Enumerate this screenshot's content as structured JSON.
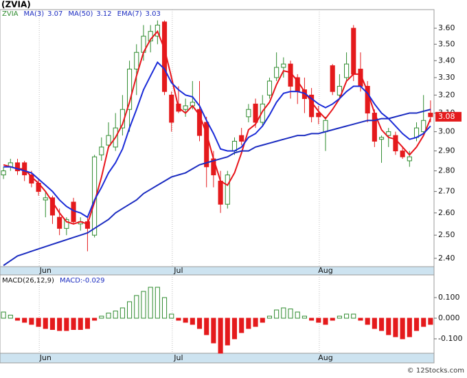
{
  "footer": "© 12Stocks.com",
  "chart_data": [
    {
      "type": "candlestick",
      "title": "(ZVIA)",
      "symbol": "ZVIA",
      "log_scale": true,
      "grid": true,
      "up_color": "#2e8b2e",
      "down_color": "#e41a1c",
      "categories": [
        null,
        null,
        null,
        null,
        null,
        null,
        "Jun",
        null,
        null,
        null,
        null,
        null,
        null,
        null,
        null,
        null,
        null,
        null,
        null,
        null,
        null,
        null,
        null,
        null,
        null,
        "Jul",
        null,
        null,
        null,
        null,
        null,
        null,
        null,
        null,
        null,
        null,
        null,
        null,
        null,
        null,
        null,
        null,
        null,
        null,
        null,
        null,
        "Aug",
        null,
        null,
        null,
        null,
        null,
        null,
        null,
        null,
        null,
        null,
        null,
        null,
        null,
        null,
        null
      ],
      "open": [
        2.78,
        2.82,
        2.84,
        2.84,
        2.78,
        2.74,
        2.66,
        2.67,
        2.58,
        2.53,
        2.65,
        2.55,
        2.56,
        2.5,
        2.88,
        2.93,
        2.92,
        3.02,
        3.12,
        3.35,
        3.45,
        3.52,
        3.55,
        3.64,
        3.2,
        3.15,
        3.12,
        3.14,
        3.12,
        3.05,
        2.86,
        2.75,
        2.64,
        2.9,
        2.98,
        3.08,
        3.15,
        3.05,
        3.2,
        3.3,
        3.36,
        3.38,
        3.3,
        3.23,
        3.2,
        3.1,
        3.0,
        3.37,
        3.2,
        3.3,
        3.6,
        3.35,
        3.25,
        3.1,
        2.96,
        2.98,
        2.98,
        2.9,
        2.85,
        2.97,
        3.0,
        3.1
      ],
      "high": [
        2.82,
        2.86,
        2.86,
        2.85,
        2.8,
        2.76,
        2.7,
        2.68,
        2.62,
        2.58,
        2.67,
        2.58,
        2.58,
        2.88,
        2.97,
        3.05,
        3.1,
        3.2,
        3.4,
        3.5,
        3.62,
        3.62,
        3.65,
        3.65,
        3.22,
        3.25,
        3.18,
        3.28,
        3.28,
        3.08,
        2.9,
        2.8,
        2.8,
        2.97,
        3.02,
        3.15,
        3.18,
        3.2,
        3.3,
        3.45,
        3.42,
        3.4,
        3.32,
        3.3,
        3.24,
        3.14,
        3.08,
        3.38,
        3.32,
        3.45,
        3.62,
        3.45,
        3.28,
        3.12,
        2.98,
        3.02,
        3.0,
        2.92,
        2.9,
        3.05,
        3.2,
        3.17
      ],
      "low": [
        2.76,
        2.8,
        2.78,
        2.75,
        2.72,
        2.68,
        2.58,
        2.55,
        2.5,
        2.5,
        2.55,
        2.52,
        2.43,
        2.49,
        2.85,
        2.92,
        2.9,
        2.98,
        3.0,
        3.2,
        3.4,
        3.45,
        3.5,
        3.2,
        3.0,
        3.1,
        3.08,
        3.12,
        2.95,
        2.72,
        2.72,
        2.6,
        2.62,
        2.88,
        2.93,
        3.05,
        3.02,
        3.03,
        3.18,
        3.28,
        3.3,
        3.18,
        3.15,
        3.1,
        3.05,
        3.04,
        2.9,
        3.2,
        3.18,
        3.28,
        3.28,
        3.22,
        3.05,
        2.92,
        2.84,
        2.92,
        2.88,
        2.86,
        2.82,
        2.95,
        2.98,
        3.05
      ],
      "close": [
        2.8,
        2.84,
        2.8,
        2.78,
        2.74,
        2.7,
        2.67,
        2.59,
        2.53,
        2.57,
        2.56,
        2.56,
        2.53,
        2.87,
        2.92,
        2.98,
        3.02,
        3.12,
        3.35,
        3.45,
        3.55,
        3.58,
        3.62,
        3.22,
        3.05,
        3.11,
        3.14,
        3.16,
        2.98,
        2.82,
        2.78,
        2.64,
        2.78,
        2.95,
        2.95,
        3.12,
        3.05,
        3.15,
        3.28,
        3.36,
        3.38,
        3.25,
        3.22,
        3.18,
        3.08,
        3.08,
        3.06,
        3.22,
        3.25,
        3.38,
        3.32,
        3.25,
        3.1,
        2.95,
        2.97,
        3.0,
        2.9,
        2.87,
        2.87,
        3.02,
        3.06,
        3.08
      ],
      "series": [
        {
          "name": "MA(3)",
          "last": 3.07,
          "color": "#e8141b",
          "values": [
            2.83,
            2.82,
            2.81,
            2.81,
            2.77,
            2.74,
            2.7,
            2.65,
            2.6,
            2.56,
            2.55,
            2.56,
            2.55,
            2.65,
            2.77,
            2.92,
            2.97,
            3.04,
            3.16,
            3.31,
            3.45,
            3.53,
            3.58,
            3.47,
            3.3,
            3.13,
            3.1,
            3.14,
            3.09,
            2.99,
            2.86,
            2.75,
            2.73,
            2.79,
            2.89,
            3.01,
            3.04,
            3.11,
            3.16,
            3.26,
            3.34,
            3.33,
            3.28,
            3.22,
            3.16,
            3.11,
            3.07,
            3.12,
            3.18,
            3.28,
            3.32,
            3.32,
            3.22,
            3.1,
            3.01,
            2.97,
            2.96,
            2.92,
            2.88,
            2.92,
            2.98,
            3.07
          ]
        },
        {
          "name": "MA(50)",
          "last": 3.12,
          "color": "#1a2bc0",
          "values": [
            2.37,
            2.39,
            2.41,
            2.42,
            2.43,
            2.44,
            2.45,
            2.46,
            2.47,
            2.48,
            2.49,
            2.5,
            2.51,
            2.53,
            2.55,
            2.57,
            2.6,
            2.62,
            2.64,
            2.66,
            2.69,
            2.71,
            2.73,
            2.75,
            2.77,
            2.78,
            2.79,
            2.81,
            2.83,
            2.84,
            2.85,
            2.86,
            2.87,
            2.89,
            2.9,
            2.9,
            2.92,
            2.93,
            2.94,
            2.95,
            2.96,
            2.97,
            2.98,
            2.98,
            2.99,
            2.99,
            3.0,
            3.01,
            3.02,
            3.03,
            3.04,
            3.05,
            3.06,
            3.06,
            3.07,
            3.07,
            3.08,
            3.09,
            3.1,
            3.1,
            3.11,
            3.12
          ]
        },
        {
          "name": "EMA(7)",
          "last": 3.03,
          "color": "#1a2bd8",
          "values": [
            2.82,
            2.82,
            2.81,
            2.8,
            2.79,
            2.76,
            2.73,
            2.7,
            2.66,
            2.63,
            2.61,
            2.6,
            2.58,
            2.66,
            2.72,
            2.79,
            2.84,
            2.91,
            3.02,
            3.12,
            3.23,
            3.31,
            3.39,
            3.35,
            3.27,
            3.23,
            3.2,
            3.19,
            3.14,
            3.06,
            2.99,
            2.91,
            2.9,
            2.9,
            2.92,
            2.97,
            2.99,
            3.03,
            3.09,
            3.16,
            3.21,
            3.22,
            3.22,
            3.21,
            3.18,
            3.15,
            3.13,
            3.15,
            3.18,
            3.22,
            3.25,
            3.25,
            3.21,
            3.15,
            3.1,
            3.07,
            3.03,
            2.99,
            2.96,
            2.97,
            2.99,
            3.03
          ]
        }
      ],
      "last_price": 3.08,
      "ylim": [
        2.365,
        3.72
      ],
      "yticks": [
        {
          "value": 2.4,
          "label": "2.40"
        },
        {
          "value": 2.5,
          "label": "2.50"
        },
        {
          "value": 2.6,
          "label": "2.60"
        },
        {
          "value": 2.7,
          "label": "2.70"
        },
        {
          "value": 2.8,
          "label": "2.80"
        },
        {
          "value": 2.9,
          "label": "2.90"
        },
        {
          "value": 3,
          "label": "3.00"
        },
        {
          "value": 3.1,
          "label": "3.10"
        },
        {
          "value": 3.2,
          "label": "3.20"
        },
        {
          "value": 3.3,
          "label": "3.30"
        },
        {
          "value": 3.4,
          "label": "3.40"
        },
        {
          "value": 3.5,
          "label": "3.50"
        },
        {
          "value": 3.6,
          "label": "3.60"
        }
      ]
    },
    {
      "type": "bar",
      "title": "MACD(26,12,9)",
      "value_text": "MACD:-0.029",
      "up_color": "#2e8b2e",
      "down_color": "#e41a1c",
      "categories": [
        null,
        null,
        null,
        null,
        null,
        null,
        "Jun",
        null,
        null,
        null,
        null,
        null,
        null,
        null,
        null,
        null,
        null,
        null,
        null,
        null,
        null,
        null,
        null,
        null,
        null,
        "Jul",
        null,
        null,
        null,
        null,
        null,
        null,
        null,
        null,
        null,
        null,
        null,
        null,
        null,
        null,
        null,
        null,
        null,
        null,
        null,
        null,
        "Aug",
        null,
        null,
        null,
        null,
        null,
        null,
        null,
        null,
        null,
        null,
        null,
        null,
        null,
        null,
        null
      ],
      "values": [
        0.03,
        0.015,
        -0.01,
        -0.02,
        -0.03,
        -0.04,
        -0.05,
        -0.055,
        -0.06,
        -0.06,
        -0.055,
        -0.055,
        -0.05,
        -0.01,
        0.01,
        0.025,
        0.035,
        0.05,
        0.08,
        0.11,
        0.13,
        0.15,
        0.15,
        0.1,
        0.02,
        -0.01,
        -0.02,
        -0.03,
        -0.05,
        -0.08,
        -0.12,
        -0.17,
        -0.13,
        -0.1,
        -0.07,
        -0.05,
        -0.04,
        -0.02,
        0.01,
        0.04,
        0.05,
        0.045,
        0.03,
        0.01,
        -0.01,
        -0.02,
        -0.03,
        -0.01,
        0.01,
        0.02,
        0.02,
        -0.01,
        -0.03,
        -0.05,
        -0.06,
        -0.08,
        -0.09,
        -0.1,
        -0.09,
        -0.06,
        -0.04,
        -0.03
      ],
      "ylim": [
        -0.17,
        0.21
      ],
      "yticks": [
        {
          "value": -0.1,
          "label": "-0.100"
        },
        {
          "value": 0,
          "label": "0.000"
        },
        {
          "value": 0.1,
          "label": "0.100"
        }
      ]
    }
  ]
}
